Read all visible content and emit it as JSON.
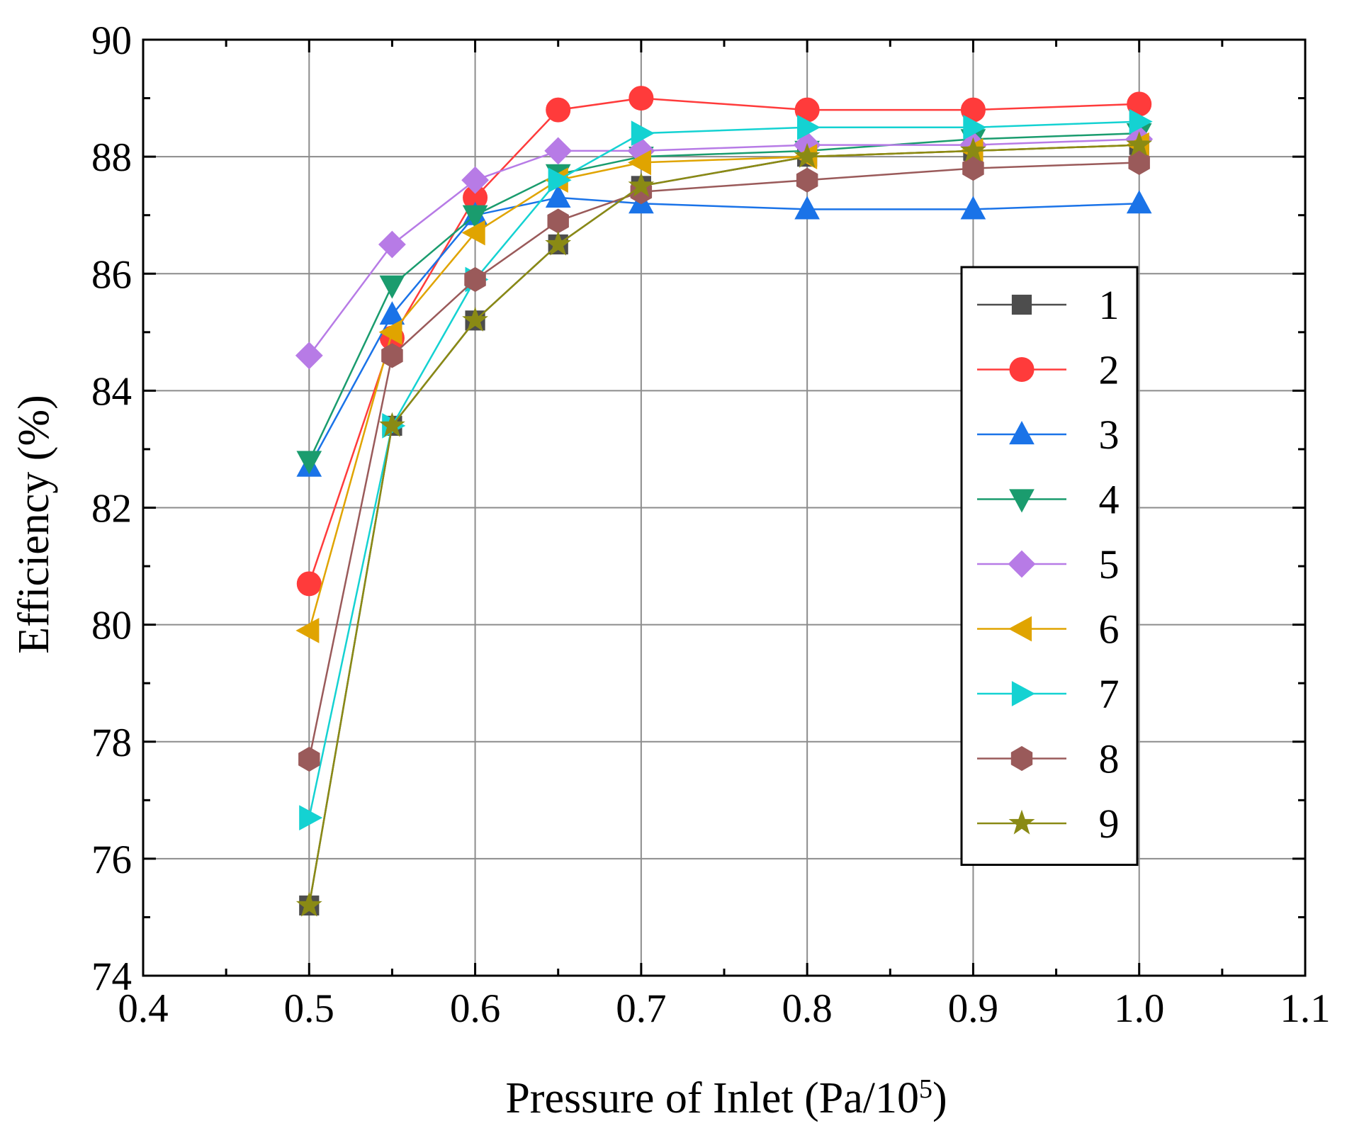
{
  "chart_data": {
    "type": "line",
    "title": "",
    "xlabel": "Pressure of Inlet (Pa/10",
    "xlabel_sup": "5",
    "xlabel_end": ")",
    "ylabel": "Efficiency (%)",
    "xlim": [
      0.4,
      1.1
    ],
    "ylim": [
      74,
      90
    ],
    "xticks": [
      0.4,
      0.5,
      0.6,
      0.7,
      0.8,
      0.9,
      1.0,
      1.1
    ],
    "xtick_labels": [
      "0.4",
      "0.5",
      "0.6",
      "0.7",
      "0.8",
      "0.9",
      "1.0",
      "1.1"
    ],
    "yticks": [
      74,
      76,
      78,
      80,
      82,
      84,
      86,
      88,
      90
    ],
    "ytick_labels": [
      "74",
      "76",
      "78",
      "80",
      "82",
      "84",
      "86",
      "88",
      "90"
    ],
    "grid": true,
    "legend_position": "right",
    "x": [
      0.5,
      0.55,
      0.6,
      0.65,
      0.7,
      0.8,
      0.9,
      1.0
    ],
    "series": [
      {
        "name": "1",
        "color": "#4d4d4d",
        "marker": "square",
        "values": [
          75.2,
          83.4,
          85.2,
          86.5,
          87.5,
          88.0,
          88.1,
          88.2
        ]
      },
      {
        "name": "2",
        "color": "#ff3b3b",
        "marker": "circle",
        "values": [
          80.7,
          84.9,
          87.3,
          88.8,
          89.0,
          88.8,
          88.8,
          88.9
        ]
      },
      {
        "name": "3",
        "color": "#1a73e8",
        "marker": "triangle-up",
        "values": [
          82.7,
          85.3,
          87.0,
          87.3,
          87.2,
          87.1,
          87.1,
          87.2
        ]
      },
      {
        "name": "4",
        "color": "#1a9c6e",
        "marker": "triangle-down",
        "values": [
          82.8,
          85.8,
          87.0,
          87.7,
          88.0,
          88.1,
          88.3,
          88.4
        ]
      },
      {
        "name": "5",
        "color": "#b77be6",
        "marker": "diamond",
        "values": [
          84.6,
          86.5,
          87.6,
          88.1,
          88.1,
          88.2,
          88.2,
          88.3
        ]
      },
      {
        "name": "6",
        "color": "#e0a400",
        "marker": "triangle-left",
        "values": [
          79.9,
          85.0,
          86.7,
          87.6,
          87.9,
          88.0,
          88.1,
          88.2
        ]
      },
      {
        "name": "7",
        "color": "#14d2d2",
        "marker": "triangle-right",
        "values": [
          76.7,
          83.4,
          85.9,
          87.6,
          88.4,
          88.5,
          88.5,
          88.6
        ]
      },
      {
        "name": "8",
        "color": "#9a5a5a",
        "marker": "hexagon",
        "values": [
          77.7,
          84.6,
          85.9,
          86.9,
          87.4,
          87.6,
          87.8,
          87.9
        ]
      },
      {
        "name": "9",
        "color": "#8a8a14",
        "marker": "star",
        "values": [
          75.2,
          83.4,
          85.2,
          86.5,
          87.5,
          88.0,
          88.1,
          88.2
        ]
      }
    ]
  }
}
